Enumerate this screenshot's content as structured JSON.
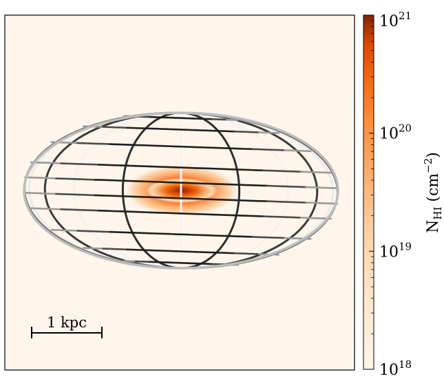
{
  "chart_data": {
    "type": "heatmap",
    "description_colormap": "Oranges",
    "colors": {
      "background": "#fff5eb",
      "low": "#fff5eb",
      "mid": "#fd8d3c",
      "high": "#7f2704"
    },
    "colorbar": {
      "label_main": "N",
      "label_sub": "HI",
      "label_unit_open": " (cm",
      "label_unit_exp": "−2",
      "label_unit_close": ")",
      "scale": "log",
      "range": [
        1e+18,
        1e+21
      ],
      "ticks": [
        {
          "value": 1e+18,
          "base": "10",
          "exp": "18"
        },
        {
          "value": 1e+19,
          "base": "10",
          "exp": "19"
        },
        {
          "value": 1e+20,
          "base": "10",
          "exp": "20"
        },
        {
          "value": 1e+21,
          "base": "10",
          "exp": "21"
        }
      ]
    },
    "scalebar": {
      "label": "1 kpc"
    },
    "image": {
      "grid": false,
      "projection_overlay": "oblate spheroid wireframe"
    },
    "density_blob": {
      "peak_value": 1e+21,
      "shape": "elongated horizontally, centered"
    }
  }
}
